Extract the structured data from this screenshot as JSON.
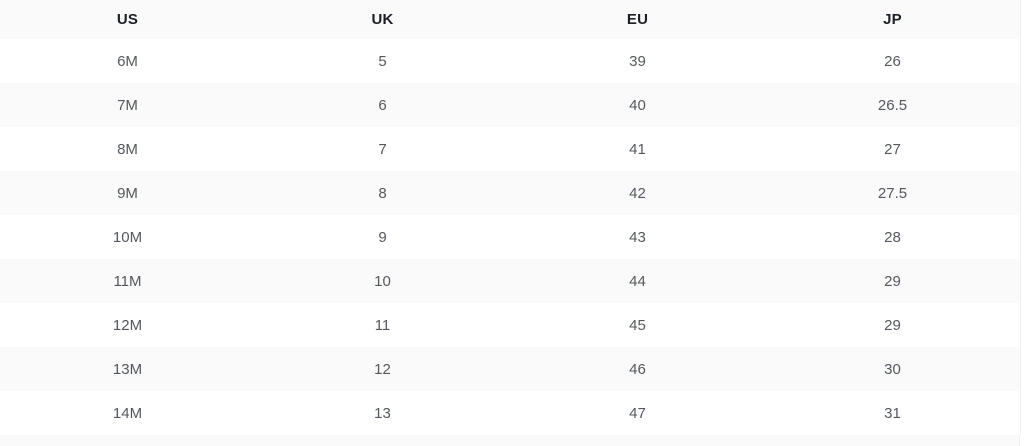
{
  "table": {
    "name": "shoe-size-conversion-table",
    "columns": [
      {
        "key": "us",
        "label": "US"
      },
      {
        "key": "uk",
        "label": "UK"
      },
      {
        "key": "eu",
        "label": "EU"
      },
      {
        "key": "jp",
        "label": "JP"
      }
    ],
    "rows": [
      [
        "6M",
        "5",
        "39",
        "26"
      ],
      [
        "7M",
        "6",
        "40",
        "26.5"
      ],
      [
        "8M",
        "7",
        "41",
        "27"
      ],
      [
        "9M",
        "8",
        "42",
        "27.5"
      ],
      [
        "10M",
        "9",
        "43",
        "28"
      ],
      [
        "11M",
        "10",
        "44",
        "29"
      ],
      [
        "12M",
        "11",
        "45",
        "29"
      ],
      [
        "13M",
        "12",
        "46",
        "30"
      ],
      [
        "14M",
        "13",
        "47",
        "31"
      ]
    ]
  },
  "colors": {
    "stripe_background": "#fafafb",
    "row_background": "#ffffff",
    "header_text": "#1b1f26",
    "cell_text": "#54585e",
    "edge_border": "#f1f1f3"
  }
}
